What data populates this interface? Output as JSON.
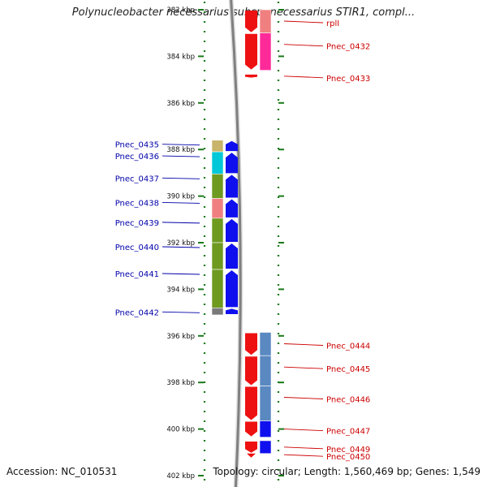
{
  "title": "Polynucleobacter necessarius subsp. necessarius STIR1, compl...",
  "footer": {
    "accession": "Accession: NC_010531",
    "summary": "Topology: circular; Length: 1,560,469 bp; Genes: 1,549"
  },
  "colors": {
    "forward": "#1010ee",
    "reverse": "#ee1111",
    "backbone": "#808080",
    "tick": "#1a7a1a",
    "label_forward": "#0000aa",
    "label_reverse": "#cc0000"
  },
  "scale": {
    "ticks": [
      {
        "kbp": 382,
        "label": "382 kbp"
      },
      {
        "kbp": 384,
        "label": "384 kbp"
      },
      {
        "kbp": 386,
        "label": "386 kbp"
      },
      {
        "kbp": 388,
        "label": "388 kbp"
      },
      {
        "kbp": 390,
        "label": "390 kbp"
      },
      {
        "kbp": 392,
        "label": "392 kbp"
      },
      {
        "kbp": 394,
        "label": "394 kbp"
      },
      {
        "kbp": 396,
        "label": "396 kbp"
      },
      {
        "kbp": 398,
        "label": "398 kbp"
      },
      {
        "kbp": 400,
        "label": "400 kbp"
      },
      {
        "kbp": 402,
        "label": "402 kbp"
      }
    ]
  },
  "genes": {
    "forward": [
      {
        "name": "Pnec_0435",
        "start_kbp": 387.6,
        "end_kbp": 388.1,
        "category_color": "#c8b46a"
      },
      {
        "name": "Pnec_0436",
        "start_kbp": 388.1,
        "end_kbp": 389.05,
        "category_color": "#00c8d8"
      },
      {
        "name": "Pnec_0437",
        "start_kbp": 389.05,
        "end_kbp": 390.1,
        "category_color": "#6e9a20"
      },
      {
        "name": "Pnec_0438",
        "start_kbp": 390.1,
        "end_kbp": 390.95,
        "category_color": "#f08080"
      },
      {
        "name": "Pnec_0439",
        "start_kbp": 390.95,
        "end_kbp": 392.0,
        "category_color": "#6e9a20"
      },
      {
        "name": "Pnec_0440",
        "start_kbp": 392.0,
        "end_kbp": 393.15,
        "category_color": "#6e9a20"
      },
      {
        "name": "Pnec_0441",
        "start_kbp": 393.15,
        "end_kbp": 394.8,
        "category_color": "#6e9a20"
      },
      {
        "name": "Pnec_0442",
        "start_kbp": 394.8,
        "end_kbp": 395.1,
        "category_color": "#7a7a7a"
      }
    ],
    "reverse": [
      {
        "name": "rplI",
        "start_kbp": 382.0,
        "end_kbp": 383.0,
        "category_color": "#f08080"
      },
      {
        "name": "Pnec_0432",
        "start_kbp": 383.0,
        "end_kbp": 384.6,
        "category_color": "#ff2a9a"
      },
      {
        "name": "Pnec_0433",
        "start_kbp": 384.75,
        "end_kbp": 384.95,
        "category_color": null
      },
      {
        "name": "Pnec_0444",
        "start_kbp": 395.85,
        "end_kbp": 396.85,
        "category_color": "#5a88c0"
      },
      {
        "name": "Pnec_0445",
        "start_kbp": 396.85,
        "end_kbp": 398.15,
        "category_color": "#5a88c0"
      },
      {
        "name": "Pnec_0446",
        "start_kbp": 398.15,
        "end_kbp": 399.65,
        "category_color": "#5a88c0"
      },
      {
        "name": "Pnec_0447",
        "start_kbp": 399.65,
        "end_kbp": 400.35,
        "category_color": "#1010ee"
      },
      {
        "name": "Pnec_0449",
        "start_kbp": 400.5,
        "end_kbp": 401.05,
        "category_color": "#1010ee"
      },
      {
        "name": "Pnec_0450",
        "start_kbp": 401.05,
        "end_kbp": 401.15,
        "category_color": null
      }
    ]
  }
}
